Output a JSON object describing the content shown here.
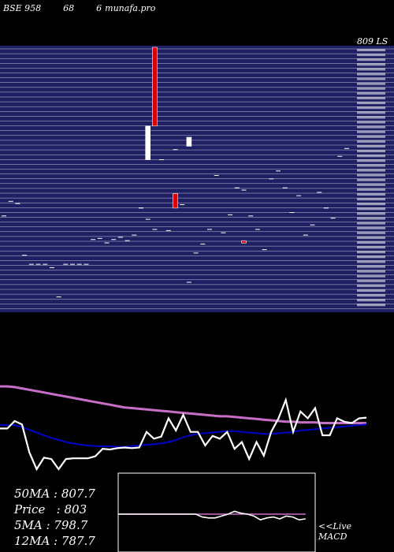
{
  "header": {
    "exchange": "BSE 958",
    "code": "68",
    "series": "6",
    "site": "munafa.pro"
  },
  "price_axis": {
    "top_label": "809 LS"
  },
  "chart_data": [
    {
      "type": "candlestick",
      "panel": "price",
      "candles": [
        {
          "i": 0,
          "o": 750,
          "c": 750
        },
        {
          "i": 1,
          "o": 763,
          "c": 763
        },
        {
          "i": 2,
          "o": 761,
          "c": 761
        },
        {
          "i": 3,
          "o": 715,
          "c": 715
        },
        {
          "i": 4,
          "o": 707,
          "c": 707
        },
        {
          "i": 5,
          "o": 707,
          "c": 707
        },
        {
          "i": 6,
          "o": 707,
          "c": 707
        },
        {
          "i": 7,
          "o": 704,
          "c": 704
        },
        {
          "i": 8,
          "o": 678,
          "c": 678
        },
        {
          "i": 9,
          "o": 707,
          "c": 707
        },
        {
          "i": 10,
          "o": 707,
          "c": 707
        },
        {
          "i": 11,
          "o": 707,
          "c": 707
        },
        {
          "i": 12,
          "o": 707,
          "c": 707
        },
        {
          "i": 13,
          "o": 729,
          "c": 729
        },
        {
          "i": 14,
          "o": 730,
          "c": 724
        },
        {
          "i": 15,
          "o": 726,
          "c": 726
        },
        {
          "i": 16,
          "o": 729,
          "c": 729
        },
        {
          "i": 17,
          "o": 731,
          "c": 731
        },
        {
          "i": 18,
          "o": 728,
          "c": 728
        },
        {
          "i": 19,
          "o": 733,
          "c": 733
        },
        {
          "i": 20,
          "o": 757,
          "c": 757
        },
        {
          "i": 21,
          "o": 747,
          "c": 747
        },
        {
          "i": 22,
          "o": 738,
          "c": 733
        },
        {
          "i": 23,
          "o": 800,
          "c": 800
        },
        {
          "i": 24,
          "o": 737,
          "c": 737
        },
        {
          "i": 25,
          "o": 809,
          "c": 809
        },
        {
          "i": 26,
          "o": 760,
          "c": 760
        },
        {
          "i": 27,
          "o": 691,
          "c": 691
        },
        {
          "i": 28,
          "o": 717,
          "c": 717
        },
        {
          "i": 29,
          "o": 725,
          "c": 725
        },
        {
          "i": 30,
          "o": 738,
          "c": 738
        },
        {
          "i": 31,
          "o": 786,
          "c": 786
        },
        {
          "i": 32,
          "o": 735,
          "c": 735
        },
        {
          "i": 33,
          "o": 751,
          "c": 751
        },
        {
          "i": 34,
          "o": 775,
          "c": 775
        },
        {
          "i": 35,
          "o": 773,
          "c": 773
        },
        {
          "i": 36,
          "o": 750,
          "c": 750
        },
        {
          "i": 37,
          "o": 738,
          "c": 738
        },
        {
          "i": 38,
          "o": 720,
          "c": 720
        },
        {
          "i": 39,
          "o": 783,
          "c": 783
        },
        {
          "i": 40,
          "o": 790,
          "c": 790
        },
        {
          "i": 41,
          "o": 775,
          "c": 775
        },
        {
          "i": 42,
          "o": 753,
          "c": 753
        },
        {
          "i": 43,
          "o": 768,
          "c": 768
        },
        {
          "i": 44,
          "o": 733,
          "c": 733
        },
        {
          "i": 45,
          "o": 742,
          "c": 742
        },
        {
          "i": 46,
          "o": 771,
          "c": 771
        },
        {
          "i": 47,
          "o": 757,
          "c": 757
        },
        {
          "i": 48,
          "o": 748,
          "c": 748
        },
        {
          "i": 49,
          "o": 803,
          "c": 803
        },
        {
          "i": 50,
          "o": 810,
          "c": 810
        }
      ],
      "bars": [
        {
          "i": 21,
          "o": 800,
          "c": 830,
          "color": "#ffffff"
        },
        {
          "i": 22,
          "o": 830,
          "c": 900,
          "color": "#dd0000"
        },
        {
          "i": 25,
          "o": 757,
          "c": 770,
          "color": "#dd0000"
        },
        {
          "i": 27,
          "o": 812,
          "c": 820,
          "color": "#ffffff"
        },
        {
          "i": 35,
          "o": 726,
          "c": 728,
          "color": "#dd0000"
        }
      ]
    },
    {
      "type": "line",
      "panel": "moving-averages",
      "series": [
        {
          "color": "#c76ec7",
          "values": [
            812,
            812,
            811,
            809,
            807,
            805,
            803,
            801,
            799,
            797,
            795,
            793,
            791,
            789,
            787,
            785,
            783,
            781,
            780,
            779,
            778,
            777,
            776,
            775,
            774,
            773,
            772,
            771,
            770,
            769,
            768,
            768,
            767,
            766,
            765,
            764,
            763,
            762,
            761,
            760,
            760,
            759,
            759,
            759,
            758,
            758,
            758,
            758,
            758,
            758,
            758
          ]
        },
        {
          "color": "#0000cc",
          "values": [
            755,
            755,
            755,
            752,
            748,
            744,
            740,
            736,
            733,
            730,
            728,
            726,
            725,
            724,
            724,
            724,
            723,
            723,
            724,
            725,
            726,
            727,
            728,
            730,
            733,
            737,
            740,
            742,
            743,
            744,
            745,
            746,
            746,
            745,
            744,
            743,
            742,
            742,
            743,
            744,
            745,
            747,
            748,
            749,
            750,
            751,
            752,
            753,
            754,
            755,
            756
          ]
        },
        {
          "color": "#ffffff",
          "values": [
            750,
            750,
            761,
            756,
            715,
            690,
            707,
            705,
            690,
            705,
            706,
            706,
            706,
            709,
            720,
            719,
            721,
            722,
            721,
            722,
            745,
            735,
            738,
            765,
            747,
            770,
            745,
            745,
            725,
            739,
            735,
            745,
            720,
            730,
            705,
            730,
            710,
            745,
            765,
            792,
            745,
            775,
            765,
            780,
            740,
            740,
            765,
            760,
            758,
            765,
            766
          ]
        }
      ]
    },
    {
      "type": "line",
      "panel": "macd",
      "series": [
        {
          "color": "#c76ec7",
          "values": [
            0,
            0,
            0,
            0,
            0,
            0,
            0,
            0,
            0,
            0,
            0,
            0,
            0,
            0,
            0,
            0,
            0,
            0,
            0,
            0,
            0,
            0,
            0,
            0,
            0,
            0,
            0,
            0,
            0,
            0
          ]
        },
        {
          "color": "#ffffff",
          "values": [
            0,
            0,
            0,
            0,
            0,
            0,
            0,
            0,
            0,
            0,
            0,
            0,
            0,
            -3,
            -4,
            -4,
            -2,
            0,
            3,
            1,
            0,
            -2,
            -6,
            -4,
            -3,
            -5,
            -2,
            -3,
            -6,
            -5
          ]
        }
      ]
    }
  ],
  "stats": [
    {
      "label": "50MA",
      "value": "807.7"
    },
    {
      "label": "Price",
      "value": "803"
    },
    {
      "label": "5MA",
      "value": "798.7"
    },
    {
      "label": "12MA",
      "value": "787.7"
    }
  ],
  "macd_label": [
    "<<Live",
    "MACD"
  ]
}
